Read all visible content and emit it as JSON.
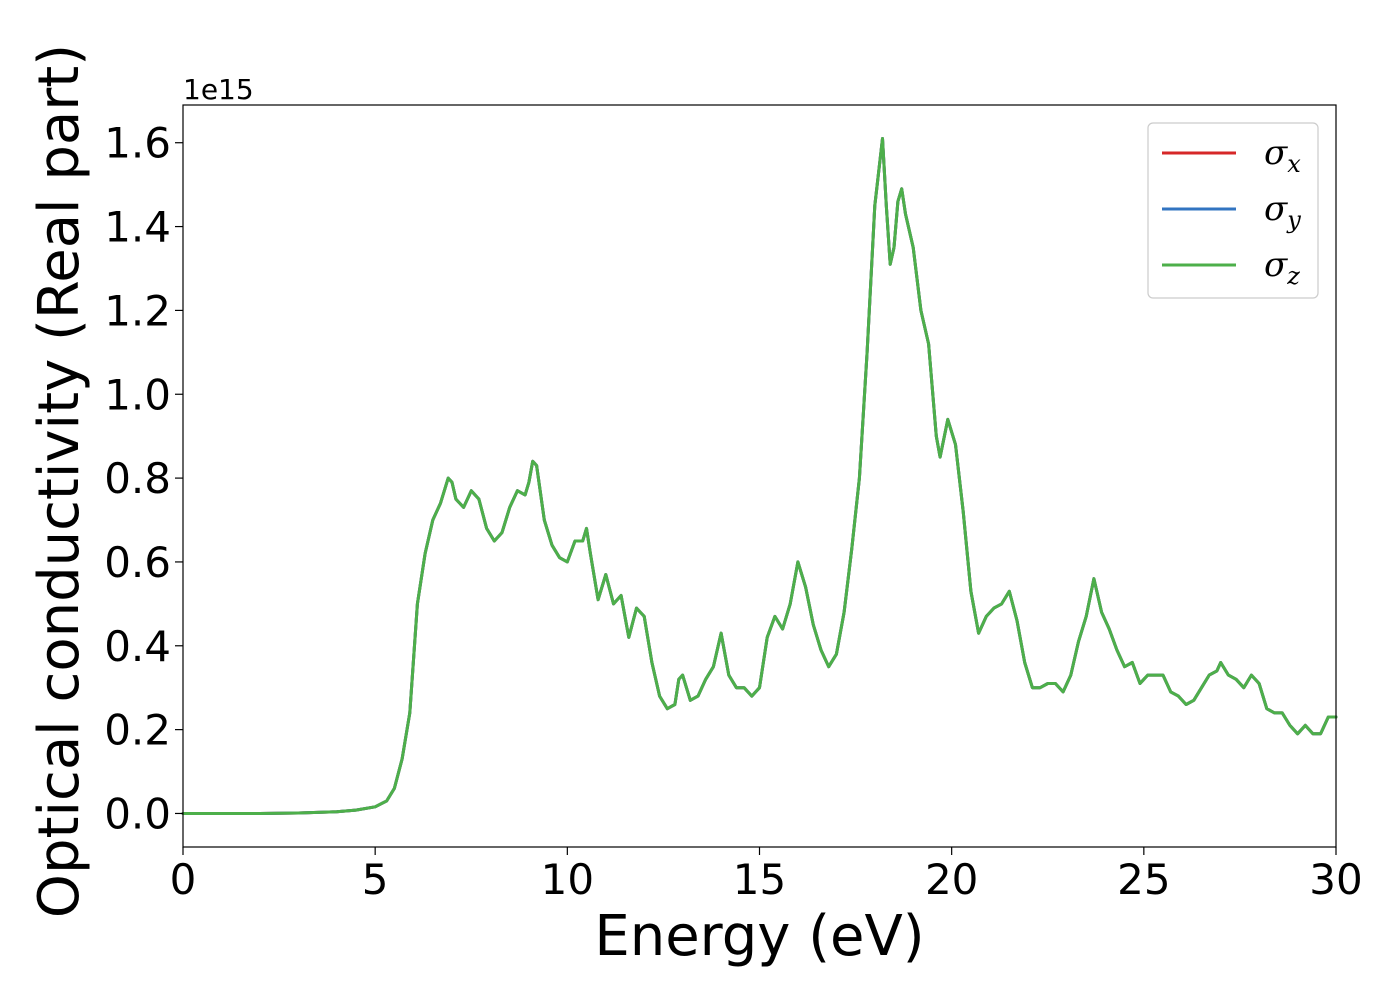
{
  "chart_data": {
    "type": "line",
    "title": "",
    "xlabel": "Energy (eV)",
    "ylabel": "Optical conductivity (Real part)",
    "y_offset_text": "1e15",
    "xlim": [
      0,
      30
    ],
    "ylim": [
      -0.08,
      1.69
    ],
    "xticks": [
      0,
      5,
      10,
      15,
      20,
      25,
      30
    ],
    "xtick_labels": [
      "0",
      "5",
      "10",
      "15",
      "20",
      "25",
      "30"
    ],
    "yticks": [
      0.0,
      0.2,
      0.4,
      0.6,
      0.8,
      1.0,
      1.2,
      1.4,
      1.6
    ],
    "ytick_labels": [
      "0.0",
      "0.2",
      "0.4",
      "0.6",
      "0.8",
      "1.0",
      "1.2",
      "1.4",
      "1.6"
    ],
    "grid": false,
    "legend_position": "top-right",
    "x": [
      0,
      1,
      2,
      3,
      4,
      4.5,
      5,
      5.3,
      5.5,
      5.7,
      5.9,
      6.1,
      6.3,
      6.5,
      6.7,
      6.9,
      7.0,
      7.1,
      7.3,
      7.5,
      7.7,
      7.9,
      8.1,
      8.3,
      8.5,
      8.7,
      8.9,
      9.0,
      9.1,
      9.2,
      9.4,
      9.6,
      9.8,
      10.0,
      10.2,
      10.4,
      10.5,
      10.6,
      10.8,
      11.0,
      11.2,
      11.4,
      11.6,
      11.8,
      12.0,
      12.2,
      12.4,
      12.6,
      12.8,
      12.9,
      13.0,
      13.2,
      13.4,
      13.6,
      13.8,
      14.0,
      14.2,
      14.4,
      14.6,
      14.8,
      15.0,
      15.2,
      15.4,
      15.6,
      15.8,
      16.0,
      16.2,
      16.4,
      16.6,
      16.8,
      17.0,
      17.2,
      17.4,
      17.6,
      17.8,
      18.0,
      18.2,
      18.3,
      18.4,
      18.5,
      18.6,
      18.7,
      18.8,
      19.0,
      19.2,
      19.4,
      19.6,
      19.7,
      19.9,
      20.1,
      20.3,
      20.5,
      20.7,
      20.9,
      21.1,
      21.3,
      21.5,
      21.7,
      21.9,
      22.1,
      22.3,
      22.5,
      22.7,
      22.9,
      23.1,
      23.3,
      23.5,
      23.7,
      23.9,
      24.1,
      24.3,
      24.5,
      24.7,
      24.9,
      25.1,
      25.3,
      25.5,
      25.7,
      25.9,
      26.1,
      26.3,
      26.5,
      26.7,
      26.9,
      27.0,
      27.2,
      27.4,
      27.6,
      27.8,
      28.0,
      28.2,
      28.4,
      28.6,
      28.8,
      29.0,
      29.2,
      29.4,
      29.6,
      29.8,
      30.0
    ],
    "series": [
      {
        "name": "σx",
        "color": "#d62728",
        "values": [
          0.0,
          0.0,
          0.0,
          0.001,
          0.004,
          0.008,
          0.016,
          0.03,
          0.06,
          0.13,
          0.24,
          0.5,
          0.62,
          0.7,
          0.74,
          0.8,
          0.79,
          0.75,
          0.73,
          0.77,
          0.75,
          0.68,
          0.65,
          0.67,
          0.73,
          0.77,
          0.76,
          0.79,
          0.84,
          0.83,
          0.7,
          0.64,
          0.61,
          0.6,
          0.65,
          0.65,
          0.68,
          0.62,
          0.51,
          0.57,
          0.5,
          0.52,
          0.42,
          0.49,
          0.47,
          0.36,
          0.28,
          0.25,
          0.26,
          0.32,
          0.33,
          0.27,
          0.28,
          0.32,
          0.35,
          0.43,
          0.33,
          0.3,
          0.3,
          0.28,
          0.3,
          0.42,
          0.47,
          0.44,
          0.5,
          0.6,
          0.54,
          0.45,
          0.39,
          0.35,
          0.38,
          0.48,
          0.63,
          0.8,
          1.1,
          1.45,
          1.61,
          1.45,
          1.31,
          1.35,
          1.46,
          1.49,
          1.43,
          1.35,
          1.2,
          1.12,
          0.9,
          0.85,
          0.94,
          0.88,
          0.72,
          0.53,
          0.43,
          0.47,
          0.49,
          0.5,
          0.53,
          0.46,
          0.36,
          0.3,
          0.3,
          0.31,
          0.31,
          0.29,
          0.33,
          0.41,
          0.47,
          0.56,
          0.48,
          0.44,
          0.39,
          0.35,
          0.36,
          0.31,
          0.33,
          0.33,
          0.33,
          0.29,
          0.28,
          0.26,
          0.27,
          0.3,
          0.33,
          0.34,
          0.36,
          0.33,
          0.32,
          0.3,
          0.33,
          0.31,
          0.25,
          0.24,
          0.24,
          0.21,
          0.19,
          0.21,
          0.19,
          0.19,
          0.23,
          0.23
        ]
      },
      {
        "name": "σy",
        "color": "#3274c1",
        "values": [
          0.0,
          0.0,
          0.0,
          0.001,
          0.004,
          0.008,
          0.016,
          0.03,
          0.06,
          0.13,
          0.24,
          0.5,
          0.62,
          0.7,
          0.74,
          0.8,
          0.79,
          0.75,
          0.73,
          0.77,
          0.75,
          0.68,
          0.65,
          0.67,
          0.73,
          0.77,
          0.76,
          0.79,
          0.84,
          0.83,
          0.7,
          0.64,
          0.61,
          0.6,
          0.65,
          0.65,
          0.68,
          0.62,
          0.51,
          0.57,
          0.5,
          0.52,
          0.42,
          0.49,
          0.47,
          0.36,
          0.28,
          0.25,
          0.26,
          0.32,
          0.33,
          0.27,
          0.28,
          0.32,
          0.35,
          0.43,
          0.33,
          0.3,
          0.3,
          0.28,
          0.3,
          0.42,
          0.47,
          0.44,
          0.5,
          0.6,
          0.54,
          0.45,
          0.39,
          0.35,
          0.38,
          0.48,
          0.63,
          0.8,
          1.1,
          1.45,
          1.61,
          1.45,
          1.31,
          1.35,
          1.46,
          1.49,
          1.43,
          1.35,
          1.2,
          1.12,
          0.9,
          0.85,
          0.94,
          0.88,
          0.72,
          0.53,
          0.43,
          0.47,
          0.49,
          0.5,
          0.53,
          0.46,
          0.36,
          0.3,
          0.3,
          0.31,
          0.31,
          0.29,
          0.33,
          0.41,
          0.47,
          0.56,
          0.48,
          0.44,
          0.39,
          0.35,
          0.36,
          0.31,
          0.33,
          0.33,
          0.33,
          0.29,
          0.28,
          0.26,
          0.27,
          0.3,
          0.33,
          0.34,
          0.36,
          0.33,
          0.32,
          0.3,
          0.33,
          0.31,
          0.25,
          0.24,
          0.24,
          0.21,
          0.19,
          0.21,
          0.19,
          0.19,
          0.23,
          0.23
        ]
      },
      {
        "name": "σz",
        "color": "#4daf4a",
        "values": [
          0.0,
          0.0,
          0.0,
          0.001,
          0.004,
          0.008,
          0.016,
          0.03,
          0.06,
          0.13,
          0.24,
          0.5,
          0.62,
          0.7,
          0.74,
          0.8,
          0.79,
          0.75,
          0.73,
          0.77,
          0.75,
          0.68,
          0.65,
          0.67,
          0.73,
          0.77,
          0.76,
          0.79,
          0.84,
          0.83,
          0.7,
          0.64,
          0.61,
          0.6,
          0.65,
          0.65,
          0.68,
          0.62,
          0.51,
          0.57,
          0.5,
          0.52,
          0.42,
          0.49,
          0.47,
          0.36,
          0.28,
          0.25,
          0.26,
          0.32,
          0.33,
          0.27,
          0.28,
          0.32,
          0.35,
          0.43,
          0.33,
          0.3,
          0.3,
          0.28,
          0.3,
          0.42,
          0.47,
          0.44,
          0.5,
          0.6,
          0.54,
          0.45,
          0.39,
          0.35,
          0.38,
          0.48,
          0.63,
          0.8,
          1.1,
          1.45,
          1.61,
          1.45,
          1.31,
          1.35,
          1.46,
          1.49,
          1.43,
          1.35,
          1.2,
          1.12,
          0.9,
          0.85,
          0.94,
          0.88,
          0.72,
          0.53,
          0.43,
          0.47,
          0.49,
          0.5,
          0.53,
          0.46,
          0.36,
          0.3,
          0.3,
          0.31,
          0.31,
          0.29,
          0.33,
          0.41,
          0.47,
          0.56,
          0.48,
          0.44,
          0.39,
          0.35,
          0.36,
          0.31,
          0.33,
          0.33,
          0.33,
          0.29,
          0.28,
          0.26,
          0.27,
          0.3,
          0.33,
          0.34,
          0.36,
          0.33,
          0.32,
          0.3,
          0.33,
          0.31,
          0.25,
          0.24,
          0.24,
          0.21,
          0.19,
          0.21,
          0.19,
          0.19,
          0.23,
          0.23
        ]
      }
    ],
    "legend": [
      {
        "symbol": "σ",
        "sub": "x",
        "color": "#d62728"
      },
      {
        "symbol": "σ",
        "sub": "y",
        "color": "#3274c1"
      },
      {
        "symbol": "σ",
        "sub": "z",
        "color": "#4daf4a"
      }
    ]
  }
}
